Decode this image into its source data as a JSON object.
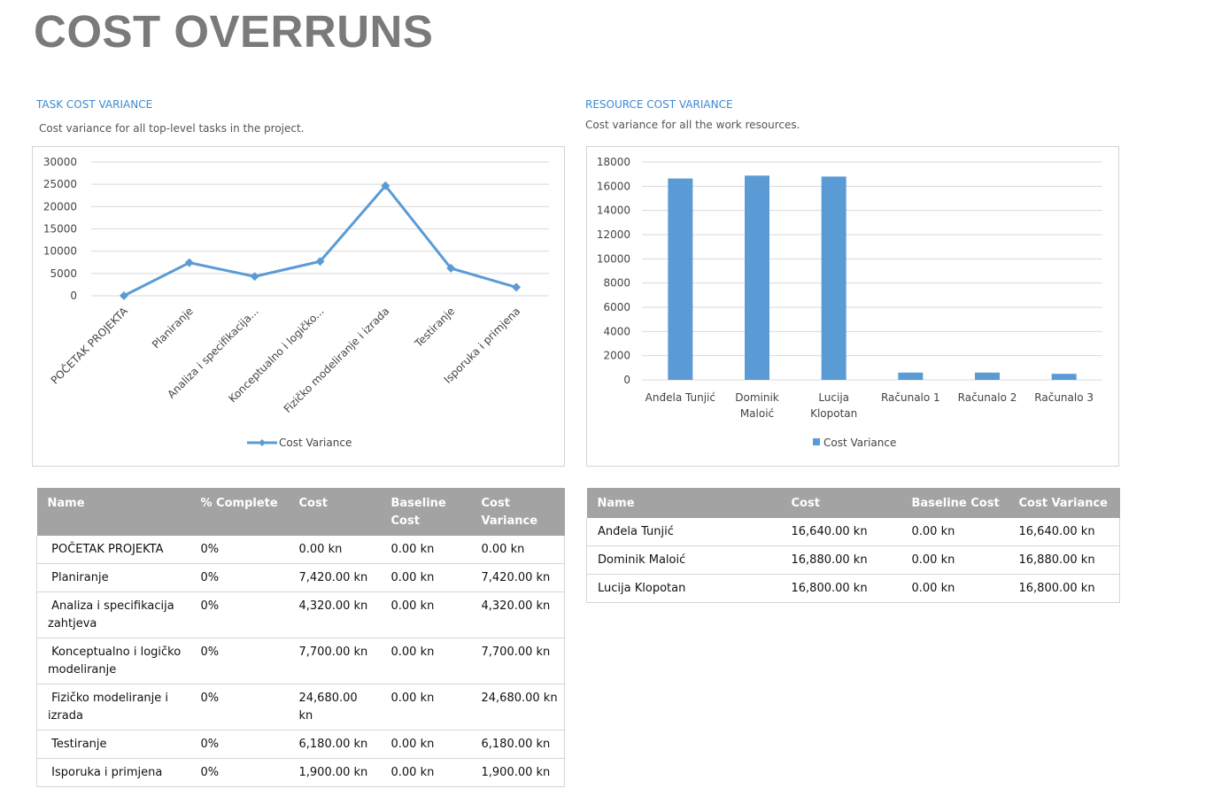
{
  "page": {
    "title": "COST OVERRUNS"
  },
  "task_section": {
    "title": "TASK COST VARIANCE",
    "description": "Cost variance for all top-level tasks in the project."
  },
  "resource_section": {
    "title": "RESOURCE COST VARIANCE",
    "description": "Cost variance for all the work resources."
  },
  "chart_data": [
    {
      "type": "line",
      "categories": [
        "POČETAK PROJEKTA",
        "Planiranje",
        "Analiza i specifikacija...",
        "Konceptualno i logičko...",
        "Fizičko modeliranje i izrada",
        "Testiranje",
        "Isporuka i primjena"
      ],
      "series": [
        {
          "name": "Cost Variance",
          "values": [
            0,
            7420,
            4320,
            7700,
            24680,
            6180,
            1900
          ]
        }
      ],
      "ylim": [
        0,
        30000
      ],
      "yticks": [
        0,
        5000,
        10000,
        15000,
        20000,
        25000,
        30000
      ],
      "color": "#5b9bd5",
      "grid": true,
      "legend": "bottom"
    },
    {
      "type": "bar",
      "categories": [
        [
          "Anđela Tunjić"
        ],
        [
          "Dominik",
          "Maloić"
        ],
        [
          "Lucija",
          "Klopotan"
        ],
        [
          "Računalo 1"
        ],
        [
          "Računalo 2"
        ],
        [
          "Računalo 3"
        ]
      ],
      "series": [
        {
          "name": "Cost Variance",
          "values": [
            16640,
            16880,
            16800,
            600,
            600,
            500
          ]
        }
      ],
      "ylim": [
        0,
        18000
      ],
      "yticks": [
        0,
        2000,
        4000,
        6000,
        8000,
        10000,
        12000,
        14000,
        16000,
        18000
      ],
      "color": "#5b9bd5",
      "grid": true,
      "legend": "bottom"
    }
  ],
  "task_table": {
    "headers": [
      [
        "Name"
      ],
      [
        "% Complete"
      ],
      [
        "Cost"
      ],
      [
        "Baseline",
        "Cost"
      ],
      [
        "Cost",
        "Variance"
      ]
    ],
    "rows": [
      [
        "POČETAK PROJEKTA",
        "0%",
        "0.00 kn",
        "0.00 kn",
        "0.00 kn"
      ],
      [
        "Planiranje",
        "0%",
        "7,420.00 kn",
        "0.00 kn",
        "7,420.00 kn"
      ],
      [
        "Analiza i specifikacija zahtjeva",
        "0%",
        "4,320.00 kn",
        "0.00 kn",
        "4,320.00 kn"
      ],
      [
        "Konceptualno i logičko modeliranje",
        "0%",
        "7,700.00 kn",
        "0.00 kn",
        "7,700.00 kn"
      ],
      [
        "Fizičko modeliranje i izrada",
        "0%",
        "24,680.00 kn",
        "0.00 kn",
        "24,680.00 kn"
      ],
      [
        "Testiranje",
        "0%",
        "6,180.00 kn",
        "0.00 kn",
        "6,180.00 kn"
      ],
      [
        "Isporuka i primjena",
        "0%",
        "1,900.00 kn",
        "0.00 kn",
        "1,900.00 kn"
      ]
    ]
  },
  "resource_table": {
    "headers": [
      "Name",
      "Cost",
      "Baseline Cost",
      "Cost Variance"
    ],
    "rows": [
      [
        "Anđela Tunjić",
        "16,640.00 kn",
        "0.00 kn",
        "16,640.00 kn"
      ],
      [
        "Dominik Maloić",
        "16,880.00 kn",
        "0.00 kn",
        "16,880.00 kn"
      ],
      [
        "Lucija Klopotan",
        "16,800.00 kn",
        "0.00 kn",
        "16,800.00 kn"
      ]
    ]
  }
}
